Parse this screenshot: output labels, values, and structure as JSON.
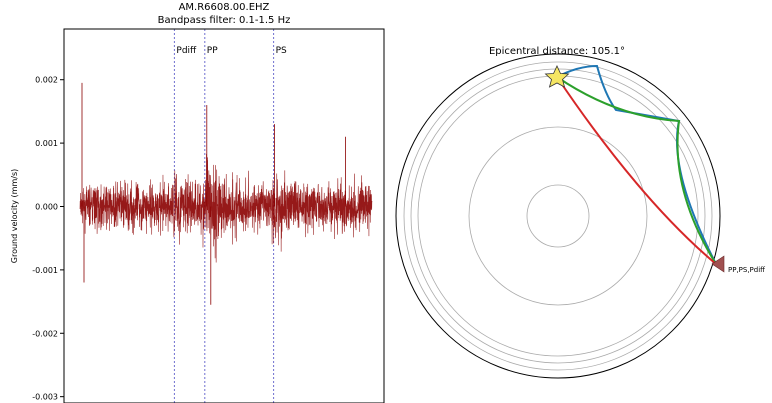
{
  "chart_data": [
    {
      "type": "line",
      "title": "AM.R6608.00.EHZ",
      "subtitle": "Bandpass filter: 0.1-1.5 Hz",
      "xlabel": "",
      "ylabel": "Ground velocity (mm/s)",
      "ylim": [
        -0.0031,
        0.0028
      ],
      "yticks": [
        {
          "value": 0.002,
          "label": "0.002"
        },
        {
          "value": 0.001,
          "label": "0.001"
        },
        {
          "value": 0.0,
          "label": "0.000"
        },
        {
          "value": -0.001,
          "label": "-0.001"
        },
        {
          "value": -0.002,
          "label": "-0.002"
        },
        {
          "value": -0.003,
          "label": "-0.003"
        }
      ],
      "grid": false,
      "series": [
        {
          "color": "#8b0000",
          "noise_amplitude": 0.00055,
          "max_peak": 0.0016,
          "min_trough": -0.00155
        }
      ],
      "phase_markers": [
        {
          "label": "Pdiff",
          "rel_position": 0.345
        },
        {
          "label": "PP",
          "rel_position": 0.44
        },
        {
          "label": "PS",
          "rel_position": 0.655
        }
      ],
      "colors": {
        "trace": "#8b0000",
        "phase_line": "#7070d0"
      }
    },
    {
      "type": "diagram",
      "title": "Epicentral distance: 105.1°",
      "rays": [
        {
          "phase": "PP",
          "color": "#1f77b4"
        },
        {
          "phase": "PS",
          "color": "#2ca02c"
        },
        {
          "phase": "Pdiff",
          "color": "#d62728"
        }
      ],
      "station_label": "PP,PS,Pdiff",
      "colors": {
        "source_star": "#f5e663",
        "station": "#a05050"
      }
    }
  ]
}
